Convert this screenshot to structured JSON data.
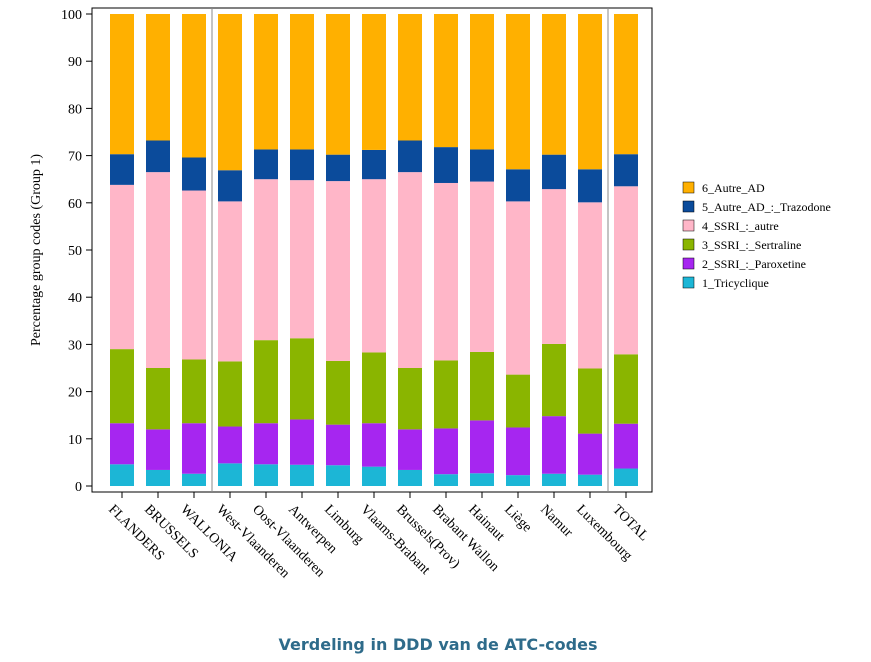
{
  "chart_data": {
    "type": "stacked-bar",
    "caption": "Verdeling in DDD van de ATC-codes",
    "y_label": "Percentage group codes (Group 1)",
    "categories": [
      "FLANDERS",
      "BRUSSELS",
      "WALLONIA",
      "West-Vlaanderen",
      "Oost-Vlaanderen",
      "Antwerpen",
      "Limburg",
      "Vlaams-Brabant",
      "Brussels(Prov)",
      "Brabant Wallon",
      "Hainaut",
      "Liège",
      "Namur",
      "Luxembourg",
      "TOTAL"
    ],
    "series": [
      {
        "name": "1_Tricyclique",
        "color": "#1cb6d6",
        "values": [
          4.6,
          3.4,
          2.6,
          4.8,
          4.6,
          4.5,
          4.4,
          4.1,
          3.4,
          2.5,
          2.7,
          2.3,
          2.6,
          2.4,
          3.7
        ]
      },
      {
        "name": "2_SSRI_:_Paroxetine",
        "color": "#a626f0",
        "values": [
          8.7,
          8.6,
          10.7,
          7.8,
          8.7,
          9.6,
          8.6,
          9.2,
          8.6,
          9.7,
          11.2,
          10.1,
          12.2,
          8.7,
          9.5
        ]
      },
      {
        "name": "3_SSRI_:_Sertraline",
        "color": "#8ab500",
        "values": [
          15.7,
          13,
          13.5,
          13.8,
          17.6,
          17.2,
          13.5,
          15,
          13,
          14.4,
          14.5,
          11.2,
          15.3,
          13.8,
          14.7
        ]
      },
      {
        "name": "4_SSRI_:_autre",
        "color": "#ffb6c8",
        "values": [
          34.8,
          41.5,
          35.8,
          33.9,
          34.1,
          33.5,
          38.1,
          36.7,
          41.5,
          37.6,
          36.1,
          36.7,
          32.8,
          35.2,
          35.6
        ]
      },
      {
        "name": "5_Autre_AD_:_Trazodone",
        "color": "#0b4b9b",
        "values": [
          6.5,
          6.7,
          7,
          6.6,
          6.3,
          6.5,
          5.6,
          6.2,
          6.7,
          7.6,
          6.8,
          6.8,
          7.3,
          7,
          6.8
        ]
      },
      {
        "name": "6_Autre_AD",
        "color": "#ffb000",
        "values": [
          29.7,
          26.8,
          30.4,
          33.1,
          28.7,
          28.7,
          29.8,
          28.8,
          26.8,
          28.2,
          28.7,
          32.9,
          29.8,
          32.9,
          29.7
        ]
      }
    ],
    "ylim": [
      0,
      100
    ],
    "yticks": [
      0,
      10,
      20,
      30,
      40,
      50,
      60,
      70,
      80,
      90,
      100
    ]
  }
}
